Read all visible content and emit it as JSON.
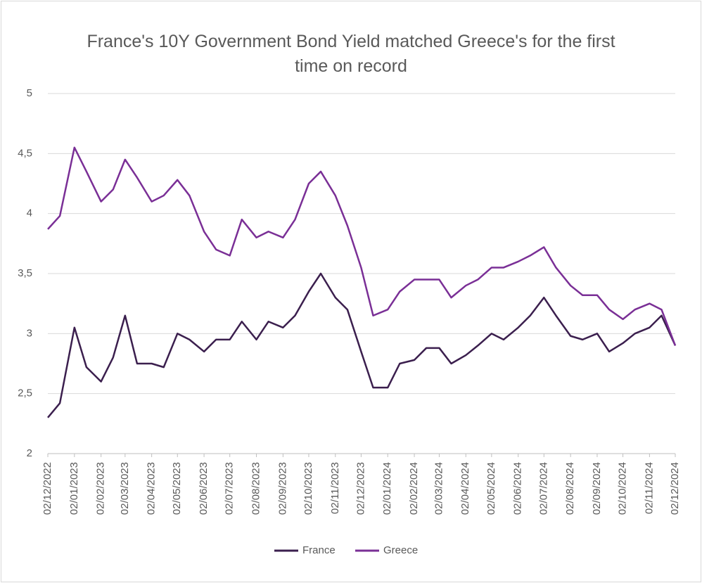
{
  "chart_data": {
    "type": "line",
    "title": "France's 10Y Government Bond Yield matched Greece's for the first time on record",
    "x": [
      "02/12/2022",
      "16/12/2022",
      "02/01/2023",
      "16/01/2023",
      "02/02/2023",
      "16/02/2023",
      "02/03/2023",
      "16/03/2023",
      "02/04/2023",
      "16/04/2023",
      "02/05/2023",
      "16/05/2023",
      "02/06/2023",
      "16/06/2023",
      "02/07/2023",
      "16/07/2023",
      "02/08/2023",
      "16/08/2023",
      "02/09/2023",
      "16/09/2023",
      "02/10/2023",
      "16/10/2023",
      "02/11/2023",
      "16/11/2023",
      "02/12/2023",
      "16/12/2023",
      "02/01/2024",
      "16/01/2024",
      "02/02/2024",
      "16/02/2024",
      "02/03/2024",
      "16/03/2024",
      "02/04/2024",
      "16/04/2024",
      "02/05/2024",
      "16/05/2024",
      "02/06/2024",
      "16/06/2024",
      "02/07/2024",
      "16/07/2024",
      "02/08/2024",
      "16/08/2024",
      "02/09/2024",
      "16/09/2024",
      "02/10/2024",
      "16/10/2024",
      "02/11/2024",
      "16/11/2024",
      "02/12/2024"
    ],
    "series": [
      {
        "name": "France",
        "color": "#3b1f4e",
        "values": [
          2.3,
          2.42,
          3.05,
          2.72,
          2.6,
          2.8,
          3.15,
          2.75,
          2.75,
          2.72,
          3.0,
          2.95,
          2.85,
          2.95,
          2.95,
          3.1,
          2.95,
          3.1,
          3.05,
          3.15,
          3.35,
          3.5,
          3.3,
          3.2,
          2.85,
          2.55,
          2.55,
          2.75,
          2.78,
          2.88,
          2.88,
          2.75,
          2.82,
          2.9,
          3.0,
          2.95,
          3.05,
          3.15,
          3.3,
          3.15,
          2.98,
          2.95,
          3.0,
          2.85,
          2.92,
          3.0,
          3.05,
          3.15,
          2.9
        ]
      },
      {
        "name": "Greece",
        "color": "#7a2f96",
        "values": [
          3.87,
          3.98,
          4.55,
          4.35,
          4.1,
          4.2,
          4.45,
          4.3,
          4.1,
          4.15,
          4.28,
          4.15,
          3.85,
          3.7,
          3.65,
          3.95,
          3.8,
          3.85,
          3.8,
          3.95,
          4.25,
          4.35,
          4.15,
          3.9,
          3.55,
          3.15,
          3.2,
          3.35,
          3.45,
          3.45,
          3.45,
          3.3,
          3.4,
          3.45,
          3.55,
          3.55,
          3.6,
          3.65,
          3.72,
          3.55,
          3.4,
          3.32,
          3.32,
          3.2,
          3.12,
          3.2,
          3.25,
          3.2,
          2.9
        ]
      }
    ],
    "xlim": [
      "02/12/2022",
      "02/12/2024"
    ],
    "xticks": [
      "02/12/2022",
      "02/01/2023",
      "02/02/2023",
      "02/03/2023",
      "02/04/2023",
      "02/05/2023",
      "02/06/2023",
      "02/07/2023",
      "02/08/2023",
      "02/09/2023",
      "02/10/2023",
      "02/11/2023",
      "02/12/2023",
      "02/01/2024",
      "02/02/2024",
      "02/03/2024",
      "02/04/2024",
      "02/05/2024",
      "02/06/2024",
      "02/07/2024",
      "02/08/2024",
      "02/09/2024",
      "02/10/2024",
      "02/11/2024",
      "02/12/2024"
    ],
    "ylim": [
      2,
      5
    ],
    "yticks": [
      2,
      {
        "value": 2.5,
        "label": "2,5"
      },
      3,
      {
        "value": 3.5,
        "label": "3,5"
      },
      4,
      {
        "value": 4.5,
        "label": "4,5"
      },
      5
    ],
    "grid": true,
    "legend": "bottom"
  }
}
